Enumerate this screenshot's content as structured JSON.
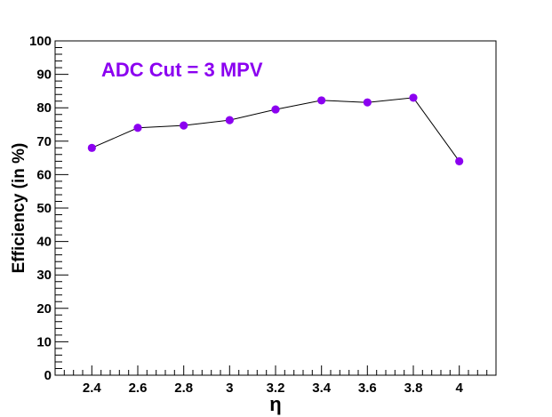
{
  "chart_data": {
    "type": "line",
    "annotation": "ADC Cut = 3 MPV",
    "xlabel": "η",
    "ylabel": "Efficiency (in %)",
    "x": [
      2.4,
      2.6,
      2.8,
      3.0,
      3.2,
      3.4,
      3.6,
      3.8,
      4.0
    ],
    "series": [
      {
        "values": [
          68.0,
          74.0,
          74.7,
          76.3,
          79.5,
          82.2,
          81.6,
          83.0,
          64.0
        ]
      }
    ],
    "xlim": [
      2.24,
      4.16
    ],
    "ylim": [
      0,
      100
    ],
    "xticks": [
      2.4,
      2.6,
      2.8,
      3.0,
      3.2,
      3.4,
      3.6,
      3.8,
      4.0
    ],
    "xtick_labels": [
      "2.4",
      "2.6",
      "2.8",
      "3",
      "3.2",
      "3.4",
      "3.6",
      "3.8",
      "4"
    ],
    "yticks": [
      0,
      10,
      20,
      30,
      40,
      50,
      60,
      70,
      80,
      90,
      100
    ],
    "ytick_labels": [
      "0",
      "10",
      "20",
      "30",
      "40",
      "50",
      "60",
      "70",
      "80",
      "90",
      "100"
    ],
    "grid": false,
    "colors": {
      "marker": "#8b00f0",
      "line": "#000000",
      "annotation": "#8b00f0"
    }
  }
}
